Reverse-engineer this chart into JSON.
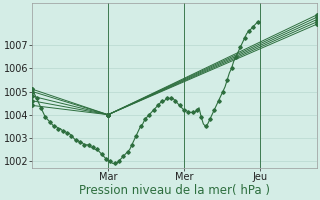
{
  "background_color": "#d4ede6",
  "grid_color": "#b8d8d0",
  "line_color": "#2d6e3e",
  "marker_color": "#2d6e3e",
  "xlabel": "Pression niveau de la mer( hPa )",
  "xlabel_fontsize": 8.5,
  "tick_fontsize": 7,
  "ylim": [
    1001.7,
    1008.8
  ],
  "yticks": [
    1002,
    1003,
    1004,
    1005,
    1006,
    1007
  ],
  "day_labels": [
    "Mar",
    "Mer",
    "Jeu"
  ],
  "day_positions": [
    96,
    192,
    288
  ],
  "xlim": [
    0,
    360
  ],
  "total_points": 360,
  "forecast_series": [
    {
      "x": [
        0,
        96,
        360
      ],
      "y": [
        1005.1,
        1004.0,
        1008.3
      ]
    },
    {
      "x": [
        0,
        96,
        360
      ],
      "y": [
        1005.0,
        1004.0,
        1008.2
      ]
    },
    {
      "x": [
        0,
        96,
        360
      ],
      "y": [
        1004.8,
        1004.0,
        1008.1
      ]
    },
    {
      "x": [
        0,
        96,
        360
      ],
      "y": [
        1004.6,
        1004.0,
        1008.0
      ]
    },
    {
      "x": [
        0,
        96,
        360
      ],
      "y": [
        1004.4,
        1004.0,
        1007.9
      ]
    }
  ],
  "main_x_start": 0,
  "main_x_end": 288,
  "main_series_y": [
    1005.1,
    1004.9,
    1004.7,
    1004.5,
    1004.3,
    1004.1,
    1003.9,
    1003.8,
    1003.7,
    1003.6,
    1003.5,
    1003.5,
    1003.4,
    1003.4,
    1003.3,
    1003.3,
    1003.2,
    1003.2,
    1003.1,
    1003.0,
    1002.9,
    1002.9,
    1002.8,
    1002.8,
    1002.7,
    1002.7,
    1002.7,
    1002.6,
    1002.6,
    1002.5,
    1002.5,
    1002.4,
    1002.3,
    1002.2,
    1002.1,
    1002.0,
    1002.0,
    1001.9,
    1001.9,
    1001.9,
    1002.0,
    1002.1,
    1002.2,
    1002.3,
    1002.4,
    1002.5,
    1002.7,
    1002.9,
    1003.1,
    1003.3,
    1003.5,
    1003.6,
    1003.8,
    1003.9,
    1004.0,
    1004.1,
    1004.2,
    1004.3,
    1004.4,
    1004.5,
    1004.6,
    1004.6,
    1004.7,
    1004.7,
    1004.7,
    1004.7,
    1004.6,
    1004.5,
    1004.4,
    1004.3,
    1004.2,
    1004.2,
    1004.1,
    1004.1,
    1004.1,
    1004.1,
    1004.2,
    1004.3,
    1003.9,
    1003.6,
    1003.5,
    1003.6,
    1003.8,
    1004.0,
    1004.2,
    1004.4,
    1004.6,
    1004.8,
    1005.0,
    1005.2,
    1005.5,
    1005.8,
    1006.0,
    1006.3,
    1006.5,
    1006.7,
    1006.9,
    1007.1,
    1007.3,
    1007.5,
    1007.6,
    1007.7,
    1007.8,
    1007.9,
    1008.0,
    1008.0
  ]
}
